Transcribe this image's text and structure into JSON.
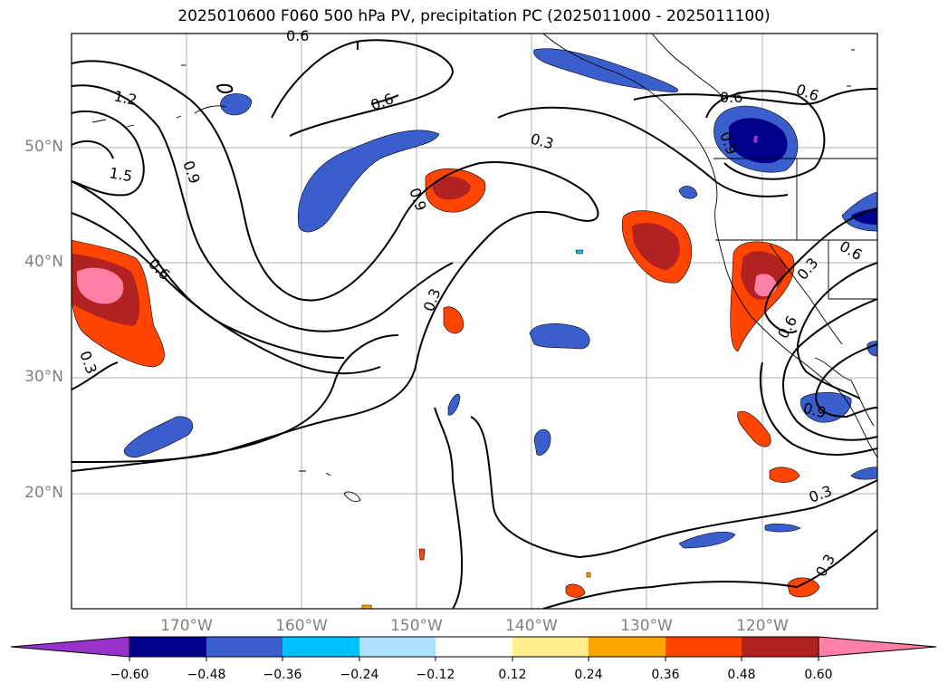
{
  "title": "2025010600 F060 500 hPa PV, precipitation PC (2025011000 - 2025011100)",
  "lat_labels": [
    "50°N",
    "40°N",
    "30°N",
    "20°N"
  ],
  "lon_labels": [
    "170°W",
    "160°W",
    "150°W",
    "140°W",
    "130°W",
    "120°W"
  ],
  "contour_labels": [
    "0.6",
    "1.2",
    "1.5",
    "0.9",
    "0.6",
    "0.3",
    "0.9",
    "0.6",
    "0.3",
    "0.6",
    "0.6",
    "0.9",
    "0.3",
    "0.6",
    "0.9",
    "0.3",
    "0.3",
    "0.3",
    "0.6"
  ],
  "colorbar": {
    "ticks": [
      "−0.60",
      "−0.48",
      "−0.36",
      "−0.24",
      "−0.12",
      "0.12",
      "0.24",
      "0.36",
      "0.48",
      "0.60"
    ],
    "colors": [
      "#9932cc",
      "#00008b",
      "#3a5fcd",
      "#00bfff",
      "#aee2ff",
      "#ffffff",
      "#ffec8b",
      "#ffa500",
      "#ff4500",
      "#b22222",
      "#ff7fa5"
    ]
  }
}
